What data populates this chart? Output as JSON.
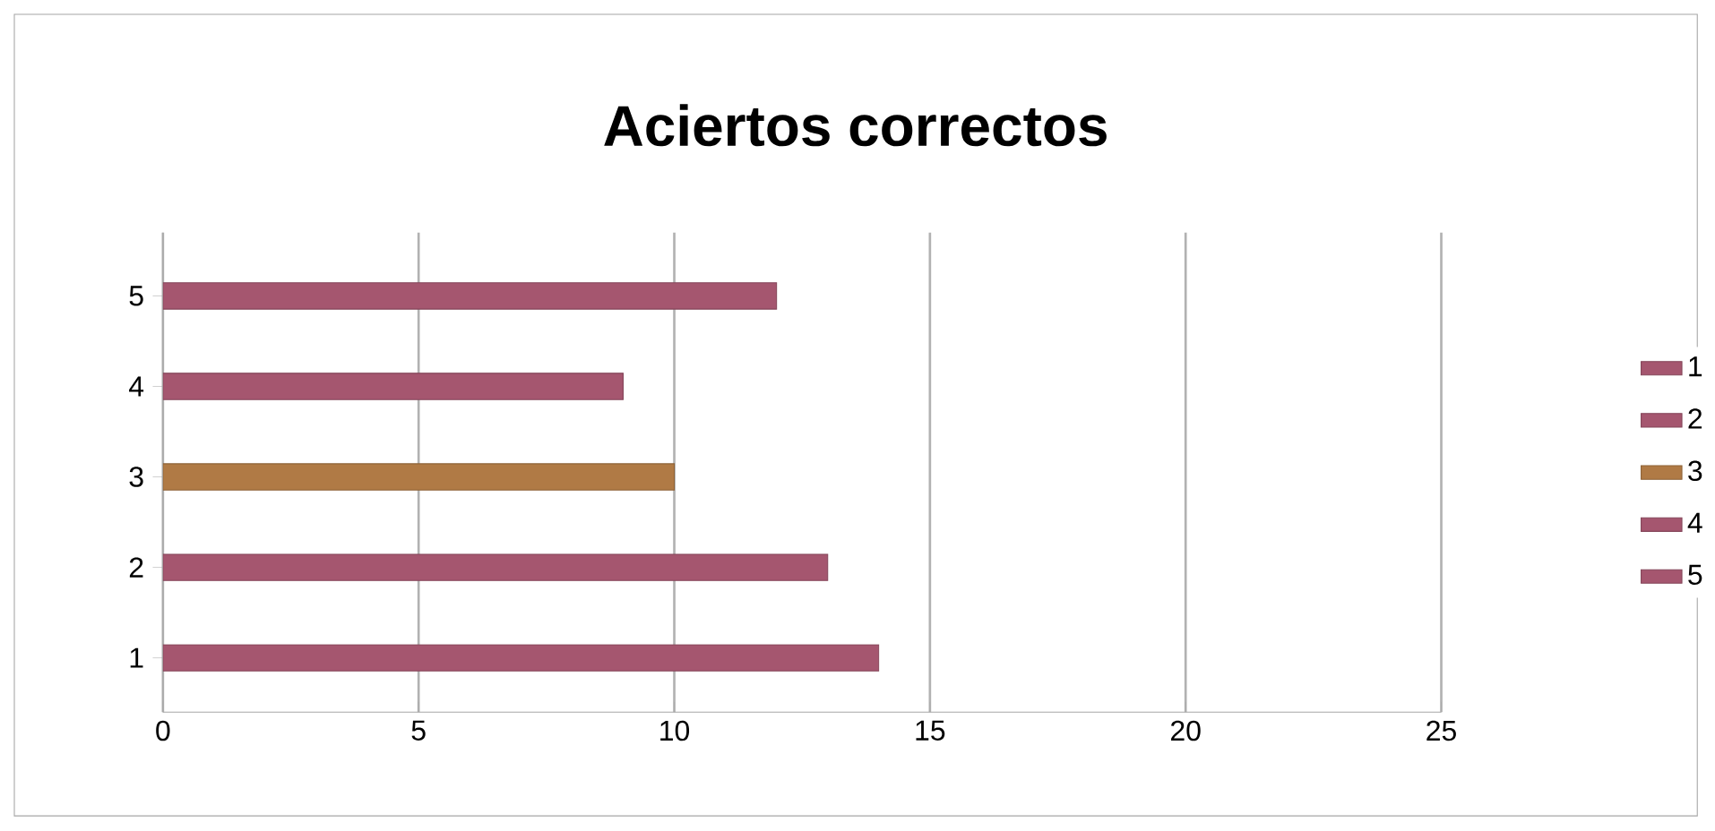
{
  "chart_data": {
    "type": "bar",
    "orientation": "horizontal",
    "title": "Aciertos correctos",
    "categories": [
      "5",
      "4",
      "3",
      "2",
      "1"
    ],
    "series": [
      {
        "name": "1",
        "color": "#a5566f",
        "values": [
          null,
          null,
          null,
          null,
          14
        ]
      },
      {
        "name": "2",
        "color": "#a5566f",
        "values": [
          null,
          null,
          null,
          13,
          null
        ]
      },
      {
        "name": "3",
        "color": "#b07a45",
        "values": [
          null,
          null,
          10,
          null,
          null
        ]
      },
      {
        "name": "4",
        "color": "#a5566f",
        "values": [
          null,
          9,
          null,
          null,
          null
        ]
      },
      {
        "name": "5",
        "color": "#a5566f",
        "values": [
          12,
          null,
          null,
          null,
          null
        ]
      }
    ],
    "xlim": [
      0,
      25
    ],
    "xticks": [
      0,
      5,
      10,
      15,
      20,
      25
    ],
    "grid": "x",
    "legend": "right"
  }
}
